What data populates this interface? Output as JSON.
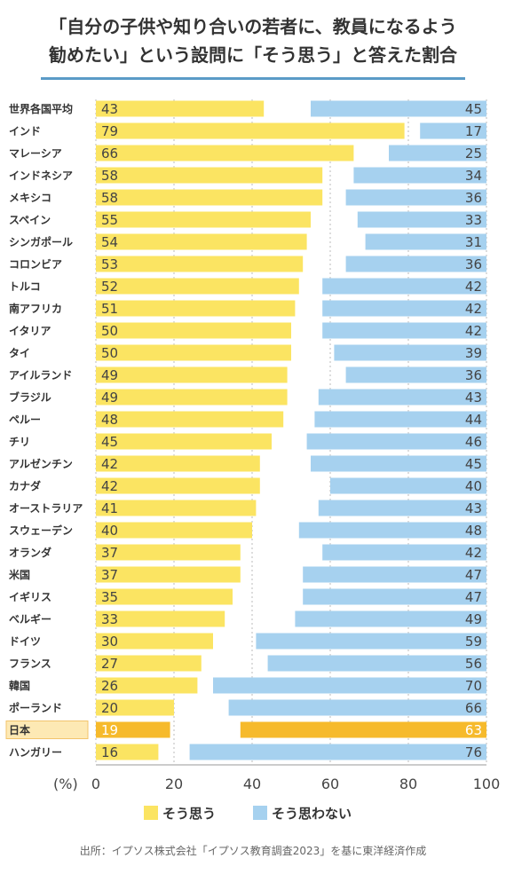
{
  "title_line1": "「自分の子供や知り合いの若者に、教員になるよう",
  "title_line2": "勧めたい」という設問に「そう思う」と答えた割合",
  "source": "出所：イプソス株式会社「イプソス教育調査2023」を基に東洋経済作成",
  "colors": {
    "agree": "#fbe462",
    "disagree": "#a6d1ef",
    "highlight_agree": "#f6ba2c",
    "highlight_disagree": "#f6ba2c",
    "highlight_label_bg": "#fde9b4",
    "highlight_label_border": "#f2c46c",
    "grid": "#bbbbbb"
  },
  "chart_data": {
    "type": "bar",
    "orientation": "horizontal",
    "stacking": "diverging-from-both-ends",
    "xlim": [
      0,
      100
    ],
    "x_ticks": [
      0,
      20,
      40,
      60,
      80,
      100
    ],
    "x_unit_label": "(%)",
    "grid": true,
    "legend_position": "bottom",
    "highlight_category": "日本",
    "categories": [
      "世界各国平均",
      "インド",
      "マレーシア",
      "インドネシア",
      "メキシコ",
      "スペイン",
      "シンガポール",
      "コロンビア",
      "トルコ",
      "南アフリカ",
      "イタリア",
      "タイ",
      "アイルランド",
      "ブラジル",
      "ペルー",
      "チリ",
      "アルゼンチン",
      "カナダ",
      "オーストラリア",
      "スウェーデン",
      "オランダ",
      "米国",
      "イギリス",
      "ベルギー",
      "ドイツ",
      "フランス",
      "韓国",
      "ポーランド",
      "日本",
      "ハンガリー"
    ],
    "series": [
      {
        "name": "そう思う",
        "align": "left",
        "values": [
          43,
          79,
          66,
          58,
          58,
          55,
          54,
          53,
          52,
          51,
          50,
          50,
          49,
          49,
          48,
          45,
          42,
          42,
          41,
          40,
          37,
          37,
          35,
          33,
          30,
          27,
          26,
          20,
          19,
          16
        ]
      },
      {
        "name": "そう思わない",
        "align": "right",
        "values": [
          45,
          17,
          25,
          34,
          36,
          33,
          31,
          36,
          42,
          42,
          42,
          39,
          36,
          43,
          44,
          46,
          45,
          40,
          43,
          48,
          42,
          47,
          47,
          49,
          59,
          56,
          70,
          66,
          63,
          76
        ]
      }
    ]
  }
}
